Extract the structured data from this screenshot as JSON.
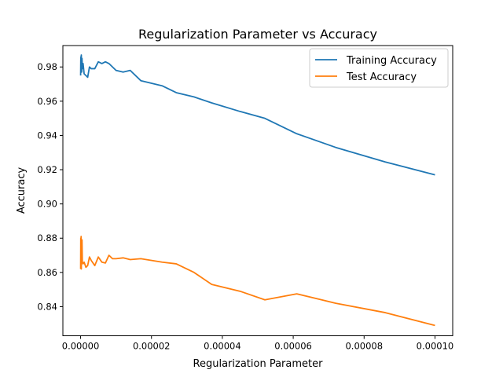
{
  "chart_data": {
    "type": "line",
    "title": "Regularization Parameter vs Accuracy",
    "xlabel": "Regularization Parameter",
    "ylabel": "Accuracy",
    "xlim": [
      -5e-06,
      0.000105
    ],
    "ylim": [
      0.823,
      0.9925
    ],
    "x_ticks": [
      0,
      2e-05,
      4e-05,
      6e-05,
      8e-05,
      0.0001
    ],
    "x_tick_labels": [
      "0.00000",
      "0.00002",
      "0.00004",
      "0.00006",
      "0.00008",
      "0.00010"
    ],
    "y_ticks": [
      0.84,
      0.86,
      0.88,
      0.9,
      0.92,
      0.94,
      0.96,
      0.98
    ],
    "y_tick_labels": [
      "0.84",
      "0.86",
      "0.88",
      "0.90",
      "0.92",
      "0.94",
      "0.96",
      "0.98"
    ],
    "grid": false,
    "legend_position": "upper-right",
    "series": [
      {
        "name": "Training Accuracy",
        "color": "#1f77b4",
        "points": [
          [
            1e-08,
            0.975
          ],
          [
            5e-08,
            0.984
          ],
          [
            1e-07,
            0.986
          ],
          [
            1.5e-07,
            0.98
          ],
          [
            2e-07,
            0.987
          ],
          [
            3e-07,
            0.977
          ],
          [
            4e-07,
            0.985
          ],
          [
            5e-07,
            0.979
          ],
          [
            7e-07,
            0.982
          ],
          [
            1e-06,
            0.976
          ],
          [
            1.5e-06,
            0.975
          ],
          [
            2e-06,
            0.974
          ],
          [
            2.5e-06,
            0.98
          ],
          [
            3e-06,
            0.979
          ],
          [
            4e-06,
            0.979
          ],
          [
            5e-06,
            0.983
          ],
          [
            6e-06,
            0.982
          ],
          [
            7e-06,
            0.983
          ],
          [
            8e-06,
            0.982
          ],
          [
            9e-06,
            0.98
          ],
          [
            1e-05,
            0.978
          ],
          [
            1.2e-05,
            0.977
          ],
          [
            1.4e-05,
            0.978
          ],
          [
            1.7e-05,
            0.972
          ],
          [
            2.3e-05,
            0.969
          ],
          [
            2.7e-05,
            0.965
          ],
          [
            3.2e-05,
            0.9625
          ],
          [
            3.7e-05,
            0.959
          ],
          [
            4.5e-05,
            0.954
          ],
          [
            5.2e-05,
            0.95
          ],
          [
            6.1e-05,
            0.941
          ],
          [
            7.2e-05,
            0.933
          ],
          [
            8.6e-05,
            0.9245
          ],
          [
            0.0001,
            0.917
          ]
        ]
      },
      {
        "name": "Test Accuracy",
        "color": "#ff7f0e",
        "points": [
          [
            1e-08,
            0.862
          ],
          [
            5e-08,
            0.88
          ],
          [
            1e-07,
            0.874
          ],
          [
            1.5e-07,
            0.881
          ],
          [
            2e-07,
            0.862
          ],
          [
            3e-07,
            0.874
          ],
          [
            4e-07,
            0.879
          ],
          [
            5e-07,
            0.866
          ],
          [
            7e-07,
            0.865
          ],
          [
            1e-06,
            0.866
          ],
          [
            1.5e-06,
            0.863
          ],
          [
            2e-06,
            0.864
          ],
          [
            2.5e-06,
            0.869
          ],
          [
            3e-06,
            0.867
          ],
          [
            4e-06,
            0.864
          ],
          [
            5e-06,
            0.869
          ],
          [
            6e-06,
            0.866
          ],
          [
            7e-06,
            0.8655
          ],
          [
            8e-06,
            0.87
          ],
          [
            9e-06,
            0.868
          ],
          [
            1e-05,
            0.868
          ],
          [
            1.2e-05,
            0.8685
          ],
          [
            1.4e-05,
            0.8675
          ],
          [
            1.7e-05,
            0.868
          ],
          [
            2.3e-05,
            0.866
          ],
          [
            2.7e-05,
            0.865
          ],
          [
            3.2e-05,
            0.86
          ],
          [
            3.7e-05,
            0.853
          ],
          [
            4.5e-05,
            0.849
          ],
          [
            5.2e-05,
            0.844
          ],
          [
            6.1e-05,
            0.8475
          ],
          [
            7.2e-05,
            0.842
          ],
          [
            8.6e-05,
            0.8365
          ],
          [
            0.0001,
            0.829
          ]
        ]
      }
    ]
  }
}
